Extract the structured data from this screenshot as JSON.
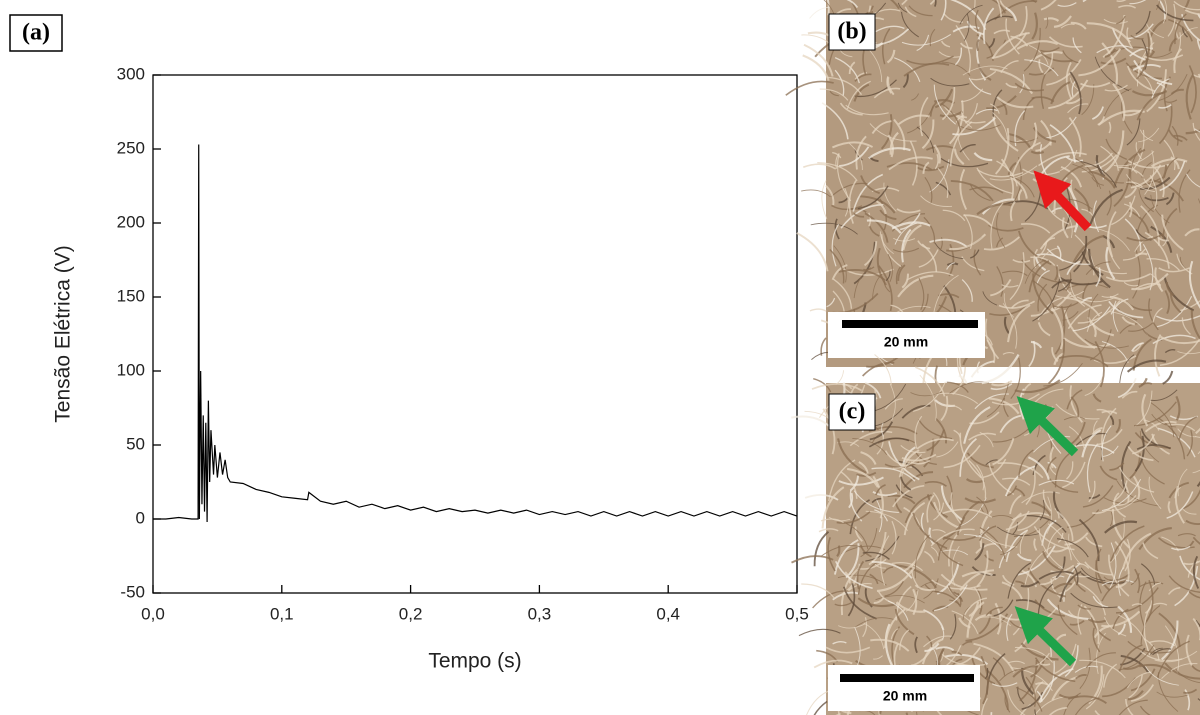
{
  "chart_data": {
    "type": "line",
    "panel_label": "(a)",
    "x_label": "Tempo (s)",
    "y_label": "Tensão Elétrica (V)",
    "xlim": [
      0,
      0.5
    ],
    "ylim": [
      -50,
      300
    ],
    "xticks": [
      {
        "value": 0,
        "label": "0,0"
      },
      {
        "value": 0.1,
        "label": "0,1"
      },
      {
        "value": 0.2,
        "label": "0,2"
      },
      {
        "value": 0.3,
        "label": "0,3"
      },
      {
        "value": 0.4,
        "label": "0,4"
      },
      {
        "value": 0.5,
        "label": "0,5"
      }
    ],
    "yticks": [
      -50,
      0,
      50,
      100,
      150,
      200,
      250,
      300
    ],
    "grid": false,
    "series": [
      {
        "color": "#000000",
        "x": [
          0,
          0.01,
          0.02,
          0.03,
          0.035,
          0.0355,
          0.036,
          0.037,
          0.038,
          0.039,
          0.04,
          0.041,
          0.042,
          0.043,
          0.044,
          0.045,
          0.047,
          0.048,
          0.05,
          0.052,
          0.054,
          0.056,
          0.058,
          0.06,
          0.07,
          0.08,
          0.09,
          0.1,
          0.11,
          0.12,
          0.121,
          0.13,
          0.14,
          0.15,
          0.16,
          0.17,
          0.18,
          0.19,
          0.2,
          0.21,
          0.22,
          0.23,
          0.24,
          0.25,
          0.26,
          0.27,
          0.28,
          0.29,
          0.3,
          0.31,
          0.32,
          0.33,
          0.34,
          0.35,
          0.36,
          0.37,
          0.38,
          0.39,
          0.4,
          0.41,
          0.42,
          0.43,
          0.44,
          0.45,
          0.46,
          0.47,
          0.48,
          0.49,
          0.5
        ],
        "values": [
          0,
          0,
          1,
          0,
          0,
          253,
          0,
          100,
          10,
          70,
          5,
          65,
          -2,
          80,
          25,
          60,
          30,
          50,
          28,
          45,
          30,
          40,
          28,
          25,
          24,
          20,
          18,
          15,
          14,
          13,
          18,
          12,
          10,
          12,
          8,
          10,
          7,
          9,
          6,
          8,
          5,
          7,
          5,
          6,
          4,
          6,
          4,
          6,
          3,
          5,
          3,
          5,
          2,
          5,
          2,
          5,
          2,
          5,
          2,
          5,
          2,
          5,
          2,
          5,
          2,
          5,
          2,
          5,
          2
        ]
      }
    ]
  },
  "photos": [
    {
      "label": "(b)",
      "scale_bar": "20 mm"
    },
    {
      "label": "(c)",
      "scale_bar": "20 mm"
    }
  ]
}
